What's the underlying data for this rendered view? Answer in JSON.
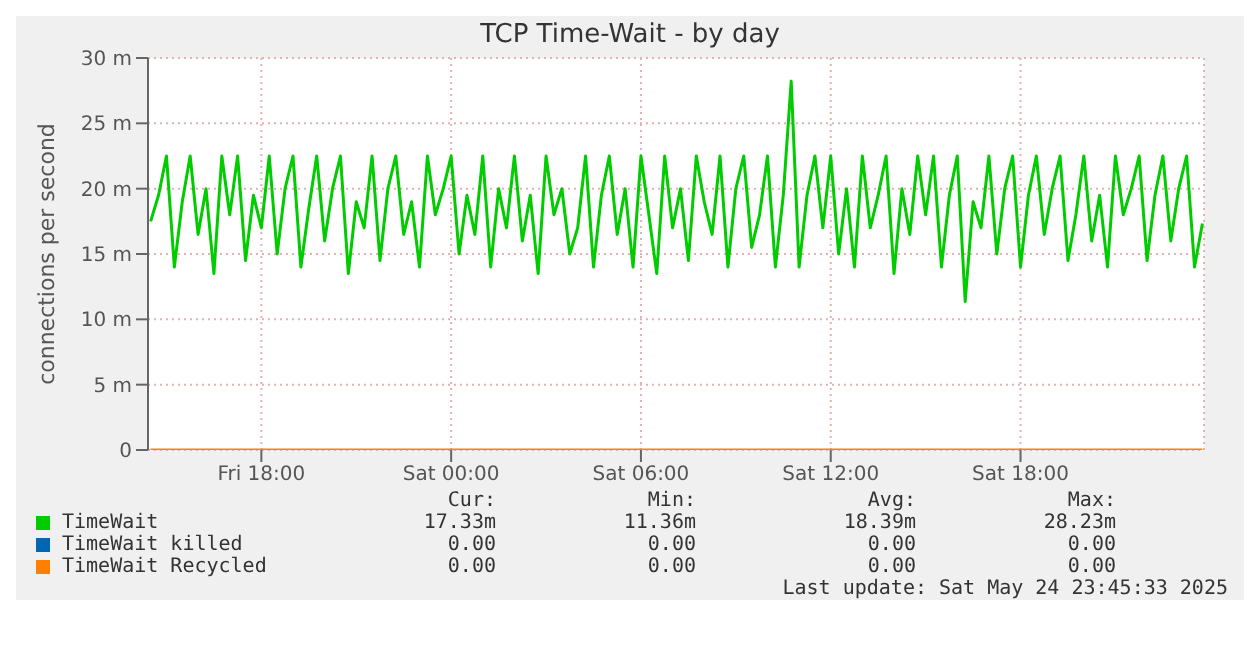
{
  "chart_data": {
    "type": "line",
    "title": "TCP Time-Wait - by day",
    "ylabel": "connections per second",
    "x": [
      "2025-05-23T14:30",
      "2025-05-23T14:45",
      "2025-05-23T15:00",
      "2025-05-23T15:15",
      "2025-05-23T15:30",
      "2025-05-23T15:45",
      "2025-05-23T16:00",
      "2025-05-23T16:15",
      "2025-05-23T16:30",
      "2025-05-23T16:45",
      "2025-05-23T17:00",
      "2025-05-23T17:15",
      "2025-05-23T17:30",
      "2025-05-23T17:45",
      "2025-05-23T18:00",
      "2025-05-23T18:15",
      "2025-05-23T18:30",
      "2025-05-23T18:45",
      "2025-05-23T19:00",
      "2025-05-23T19:15",
      "2025-05-23T19:30",
      "2025-05-23T19:45",
      "2025-05-23T20:00",
      "2025-05-23T20:15",
      "2025-05-23T20:30",
      "2025-05-23T20:45",
      "2025-05-23T21:00",
      "2025-05-23T21:15",
      "2025-05-23T21:30",
      "2025-05-23T21:45",
      "2025-05-23T22:00",
      "2025-05-23T22:15",
      "2025-05-23T22:30",
      "2025-05-23T22:45",
      "2025-05-23T23:00",
      "2025-05-23T23:15",
      "2025-05-23T23:30",
      "2025-05-23T23:45",
      "2025-05-24T00:00",
      "2025-05-24T00:15",
      "2025-05-24T00:30",
      "2025-05-24T00:45",
      "2025-05-24T01:00",
      "2025-05-24T01:15",
      "2025-05-24T01:30",
      "2025-05-24T01:45",
      "2025-05-24T02:00",
      "2025-05-24T02:15",
      "2025-05-24T02:30",
      "2025-05-24T02:45",
      "2025-05-24T03:00",
      "2025-05-24T03:15",
      "2025-05-24T03:30",
      "2025-05-24T03:45",
      "2025-05-24T04:00",
      "2025-05-24T04:15",
      "2025-05-24T04:30",
      "2025-05-24T04:45",
      "2025-05-24T05:00",
      "2025-05-24T05:15",
      "2025-05-24T05:30",
      "2025-05-24T05:45",
      "2025-05-24T06:00",
      "2025-05-24T06:15",
      "2025-05-24T06:30",
      "2025-05-24T06:45",
      "2025-05-24T07:00",
      "2025-05-24T07:15",
      "2025-05-24T07:30",
      "2025-05-24T07:45",
      "2025-05-24T08:00",
      "2025-05-24T08:15",
      "2025-05-24T08:30",
      "2025-05-24T08:45",
      "2025-05-24T09:00",
      "2025-05-24T09:15",
      "2025-05-24T09:30",
      "2025-05-24T09:45",
      "2025-05-24T10:00",
      "2025-05-24T10:15",
      "2025-05-24T10:30",
      "2025-05-24T10:45",
      "2025-05-24T11:00",
      "2025-05-24T11:15",
      "2025-05-24T11:30",
      "2025-05-24T11:45",
      "2025-05-24T12:00",
      "2025-05-24T12:15",
      "2025-05-24T12:30",
      "2025-05-24T12:45",
      "2025-05-24T13:00",
      "2025-05-24T13:15",
      "2025-05-24T13:30",
      "2025-05-24T13:45",
      "2025-05-24T14:00",
      "2025-05-24T14:15",
      "2025-05-24T14:30",
      "2025-05-24T14:45",
      "2025-05-24T15:00",
      "2025-05-24T15:15",
      "2025-05-24T15:30",
      "2025-05-24T15:45",
      "2025-05-24T16:00",
      "2025-05-24T16:15",
      "2025-05-24T16:30",
      "2025-05-24T16:45",
      "2025-05-24T17:00",
      "2025-05-24T17:15",
      "2025-05-24T17:30",
      "2025-05-24T17:45",
      "2025-05-24T18:00",
      "2025-05-24T18:15",
      "2025-05-24T18:30",
      "2025-05-24T18:45",
      "2025-05-24T19:00",
      "2025-05-24T19:15",
      "2025-05-24T19:30",
      "2025-05-24T19:45",
      "2025-05-24T20:00",
      "2025-05-24T20:15",
      "2025-05-24T20:30",
      "2025-05-24T20:45",
      "2025-05-24T21:00",
      "2025-05-24T21:15",
      "2025-05-24T21:30",
      "2025-05-24T21:45",
      "2025-05-24T22:00",
      "2025-05-24T22:15",
      "2025-05-24T22:30",
      "2025-05-24T22:45",
      "2025-05-24T23:00",
      "2025-05-24T23:15",
      "2025-05-24T23:30",
      "2025-05-24T23:45"
    ],
    "series": [
      {
        "name": "TimeWait",
        "color": "#00cc00",
        "values": [
          17.5,
          19.5,
          22.5,
          14,
          19,
          22.5,
          16.5,
          20,
          13.5,
          22.5,
          18,
          22.5,
          14.5,
          19.5,
          17,
          22.5,
          15,
          20,
          22.5,
          14,
          18.5,
          22.5,
          16,
          20,
          22.5,
          13.5,
          19,
          17,
          22.5,
          14.5,
          20,
          22.5,
          16.5,
          19,
          14,
          22.5,
          18,
          20,
          22.5,
          15,
          19.5,
          16.5,
          22.5,
          14,
          20,
          17,
          22.5,
          16,
          19.5,
          13.5,
          22.5,
          18,
          20,
          15,
          17,
          22.5,
          14,
          19.5,
          22.5,
          16.5,
          20,
          14,
          22.5,
          18,
          13.5,
          22.5,
          17,
          20,
          14.5,
          22.5,
          19,
          16.5,
          22.5,
          14,
          20,
          22.5,
          15.5,
          18,
          22.5,
          14,
          19.5,
          28.23,
          14,
          19.5,
          22.5,
          17,
          22.5,
          15,
          20,
          14,
          22.5,
          17,
          19.5,
          22.5,
          13.5,
          20,
          16.5,
          22.5,
          18,
          22.5,
          14,
          19.5,
          22.5,
          11.36,
          19,
          17,
          22.5,
          15,
          20,
          22.5,
          14,
          19.5,
          22.5,
          16.5,
          20,
          22.5,
          14.5,
          18,
          22.5,
          16,
          19.5,
          14,
          22.5,
          18,
          20,
          22.5,
          14.5,
          19.5,
          22.5,
          16,
          20,
          22.5,
          14,
          17.33
        ]
      },
      {
        "name": "TimeWait killed",
        "color": "#0066b3",
        "values": [
          null,
          null,
          null,
          null,
          null,
          null,
          null,
          null,
          null,
          null,
          null,
          null,
          null,
          null,
          null,
          null,
          null,
          null,
          null,
          null,
          null,
          null,
          null,
          null,
          null,
          null,
          null,
          null,
          null,
          null,
          null,
          null,
          null,
          null,
          null,
          null,
          null,
          null,
          null,
          null,
          null,
          null,
          null,
          null,
          null,
          null,
          null,
          null,
          null,
          null,
          null,
          null,
          null,
          null,
          null,
          null,
          null,
          null,
          null,
          null,
          null,
          null,
          null,
          null,
          null,
          null,
          null,
          null,
          null,
          null,
          null,
          null,
          null,
          null,
          null,
          null,
          null,
          null,
          null,
          null,
          null,
          null,
          null,
          null,
          null,
          null,
          null,
          null,
          null,
          null,
          null,
          null,
          null,
          null,
          null,
          null,
          null,
          null,
          null,
          null,
          null,
          null,
          null,
          null,
          null,
          null,
          null,
          null,
          null,
          null,
          null,
          null,
          null,
          null,
          null,
          null,
          null,
          null,
          null,
          null,
          null,
          null,
          null,
          null,
          null,
          null,
          null,
          null,
          null,
          null,
          null,
          null,
          null,
          null
        ]
      },
      {
        "name": "TimeWait Recycled",
        "color": "#ff8000",
        "x": [
          "2025-05-23T14:30",
          "2025-05-24T23:45"
        ],
        "values": [
          0,
          0
        ]
      }
    ],
    "xlim": [
      "2025-05-23T14:25",
      "2025-05-24T23:48"
    ],
    "xticks": [
      {
        "value": "2025-05-23T18:00",
        "label": "Fri 18:00"
      },
      {
        "value": "2025-05-24T00:00",
        "label": "Sat 00:00"
      },
      {
        "value": "2025-05-24T06:00",
        "label": "Sat 06:00"
      },
      {
        "value": "2025-05-24T12:00",
        "label": "Sat 12:00"
      },
      {
        "value": "2025-05-24T18:00",
        "label": "Sat 18:00"
      }
    ],
    "ylim": [
      0,
      30
    ],
    "yticks": [
      0,
      {
        "value": 5,
        "label": "5 m"
      },
      {
        "value": 10,
        "label": "10 m"
      },
      {
        "value": 15,
        "label": "15 m"
      },
      {
        "value": 20,
        "label": "20 m"
      },
      {
        "value": 25,
        "label": "25 m"
      },
      {
        "value": 30,
        "label": "30 m"
      }
    ],
    "grid": true,
    "legend": "bottom",
    "marker": "none",
    "line_style": "solid",
    "annotations": [
      "Cur:",
      "Min:",
      "Avg:",
      "Max:",
      "17.33m",
      "11.36m",
      "18.39m",
      "28.23m",
      "0.00",
      "0.00",
      "0.00",
      "0.00",
      "0.00",
      "0.00",
      "0.00",
      "0.00",
      "Last update: Sat May 24 23:45:33 2025"
    ]
  }
}
